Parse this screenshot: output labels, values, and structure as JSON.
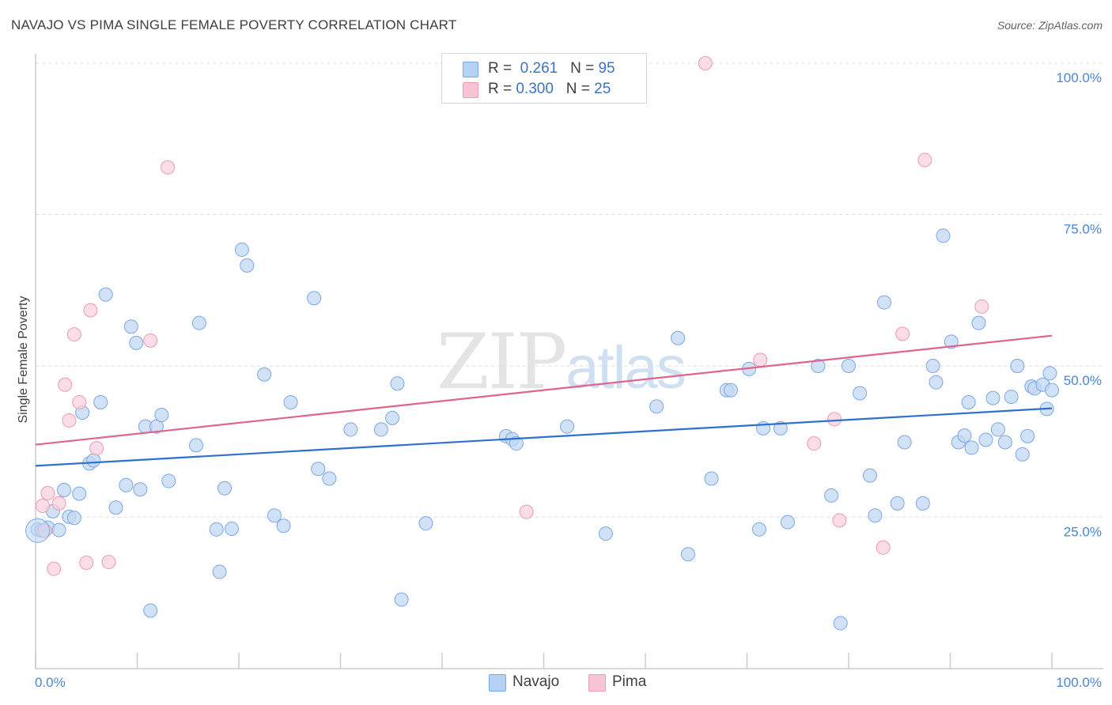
{
  "title": "NAVAJO VS PIMA SINGLE FEMALE POVERTY CORRELATION CHART",
  "source": "Source: ZipAtlas.com",
  "watermark": {
    "zip": "ZIP",
    "atlas": "atlas"
  },
  "legend": {
    "rows": [
      {
        "r_label": "R =",
        "r_value": "0.261",
        "n_label": "N =",
        "n_value": "95",
        "color": "#b7d1f4"
      },
      {
        "r_label": "R =",
        "r_value": "0.300",
        "n_label": "N =",
        "n_value": "25",
        "color": "#f7c5d3"
      }
    ]
  },
  "bottom_legend": [
    {
      "label": "Navajo",
      "color": "#b7d1f4"
    },
    {
      "label": "Pima",
      "color": "#f7c5d3"
    }
  ],
  "chart_data": {
    "type": "scatter",
    "title": "NAVAJO VS PIMA SINGLE FEMALE POVERTY CORRELATION CHART",
    "xlabel": "",
    "ylabel": "Single Female Poverty",
    "xlim": [
      0,
      100
    ],
    "ylim": [
      0,
      100
    ],
    "x_tick_labels": [
      "0.0%",
      "100.0%"
    ],
    "y_ticks": [
      25,
      50,
      75,
      100
    ],
    "y_tick_labels": [
      "25.0%",
      "50.0%",
      "75.0%",
      "100.0%"
    ],
    "grid": true,
    "legend_position": "top-center",
    "series": [
      {
        "name": "Navajo",
        "color": "#7aa8e6",
        "fill": "#c2d7f3",
        "line_color": "#2f6fcf",
        "trend": [
          [
            0,
            33.5
          ],
          [
            100,
            43.0
          ]
        ],
        "points": [
          [
            0.2,
            23.0
          ],
          [
            0.6,
            22.8
          ],
          [
            1.2,
            23.3
          ],
          [
            1.7,
            26.0
          ],
          [
            2.3,
            22.9
          ],
          [
            2.8,
            29.5
          ],
          [
            3.3,
            25.1
          ],
          [
            3.8,
            24.9
          ],
          [
            4.3,
            28.9
          ],
          [
            4.6,
            42.3
          ],
          [
            5.3,
            33.9
          ],
          [
            5.7,
            34.4
          ],
          [
            6.4,
            44.0
          ],
          [
            6.9,
            61.8
          ],
          [
            7.9,
            26.6
          ],
          [
            8.9,
            30.3
          ],
          [
            9.4,
            56.5
          ],
          [
            9.9,
            53.8
          ],
          [
            10.3,
            29.6
          ],
          [
            10.8,
            40.0
          ],
          [
            11.3,
            9.6
          ],
          [
            11.9,
            40.0
          ],
          [
            12.4,
            41.9
          ],
          [
            13.1,
            31.0
          ],
          [
            15.8,
            36.9
          ],
          [
            16.1,
            57.1
          ],
          [
            17.8,
            23.0
          ],
          [
            18.1,
            16.0
          ],
          [
            18.6,
            29.8
          ],
          [
            19.3,
            23.1
          ],
          [
            20.8,
            66.6
          ],
          [
            20.3,
            69.2
          ],
          [
            22.5,
            48.6
          ],
          [
            23.5,
            25.3
          ],
          [
            24.4,
            23.6
          ],
          [
            25.1,
            44.0
          ],
          [
            27.4,
            61.2
          ],
          [
            27.8,
            33.0
          ],
          [
            28.9,
            31.4
          ],
          [
            31.0,
            39.5
          ],
          [
            34.0,
            39.5
          ],
          [
            35.1,
            41.4
          ],
          [
            35.6,
            47.1
          ],
          [
            36.0,
            11.4
          ],
          [
            38.4,
            24.0
          ],
          [
            46.3,
            38.4
          ],
          [
            46.9,
            37.9
          ],
          [
            47.3,
            37.2
          ],
          [
            52.3,
            40.0
          ],
          [
            56.1,
            22.3
          ],
          [
            61.1,
            43.3
          ],
          [
            63.2,
            54.6
          ],
          [
            64.2,
            18.9
          ],
          [
            66.5,
            31.4
          ],
          [
            68.0,
            46.0
          ],
          [
            68.4,
            46.0
          ],
          [
            70.2,
            49.5
          ],
          [
            71.2,
            23.0
          ],
          [
            71.6,
            39.7
          ],
          [
            73.3,
            39.7
          ],
          [
            74.0,
            24.2
          ],
          [
            77.0,
            50.0
          ],
          [
            78.3,
            28.6
          ],
          [
            79.2,
            7.5
          ],
          [
            80.0,
            50.0
          ],
          [
            81.1,
            45.5
          ],
          [
            82.1,
            31.9
          ],
          [
            82.6,
            25.3
          ],
          [
            83.5,
            60.5
          ],
          [
            84.8,
            27.3
          ],
          [
            85.5,
            37.4
          ],
          [
            87.3,
            27.3
          ],
          [
            88.3,
            50.0
          ],
          [
            88.6,
            47.3
          ],
          [
            89.3,
            71.5
          ],
          [
            90.1,
            54.0
          ],
          [
            90.8,
            37.4
          ],
          [
            91.4,
            38.5
          ],
          [
            91.8,
            44.0
          ],
          [
            92.1,
            36.5
          ],
          [
            92.8,
            57.1
          ],
          [
            93.5,
            37.8
          ],
          [
            94.2,
            44.7
          ],
          [
            94.7,
            39.5
          ],
          [
            95.4,
            37.4
          ],
          [
            96.0,
            44.9
          ],
          [
            96.6,
            50.0
          ],
          [
            97.1,
            35.4
          ],
          [
            97.6,
            38.4
          ],
          [
            98.0,
            46.6
          ],
          [
            98.3,
            46.3
          ],
          [
            99.1,
            46.9
          ],
          [
            99.5,
            42.9
          ],
          [
            99.8,
            48.8
          ],
          [
            100.0,
            46.0
          ]
        ]
      },
      {
        "name": "Pima",
        "color": "#ee9ab2",
        "fill": "#f8d2dd",
        "line_color": "#e0648c",
        "trend": [
          [
            0,
            37.0
          ],
          [
            100,
            55.0
          ]
        ],
        "points": [
          [
            0.7,
            26.9
          ],
          [
            1.2,
            29.0
          ],
          [
            1.8,
            16.5
          ],
          [
            2.3,
            27.3
          ],
          [
            2.9,
            46.9
          ],
          [
            3.3,
            41.0
          ],
          [
            3.8,
            55.2
          ],
          [
            4.3,
            44.0
          ],
          [
            5.0,
            17.5
          ],
          [
            5.4,
            59.2
          ],
          [
            6.0,
            36.4
          ],
          [
            7.2,
            17.6
          ],
          [
            11.3,
            54.2
          ],
          [
            13.0,
            82.8
          ],
          [
            48.3,
            25.9
          ],
          [
            65.9,
            100.0
          ],
          [
            71.3,
            51.0
          ],
          [
            76.6,
            37.2
          ],
          [
            78.6,
            41.2
          ],
          [
            79.1,
            24.5
          ],
          [
            83.4,
            20.0
          ],
          [
            85.3,
            55.3
          ],
          [
            87.5,
            84.0
          ],
          [
            93.1,
            59.8
          ],
          [
            0.9,
            22.8
          ]
        ]
      }
    ]
  }
}
